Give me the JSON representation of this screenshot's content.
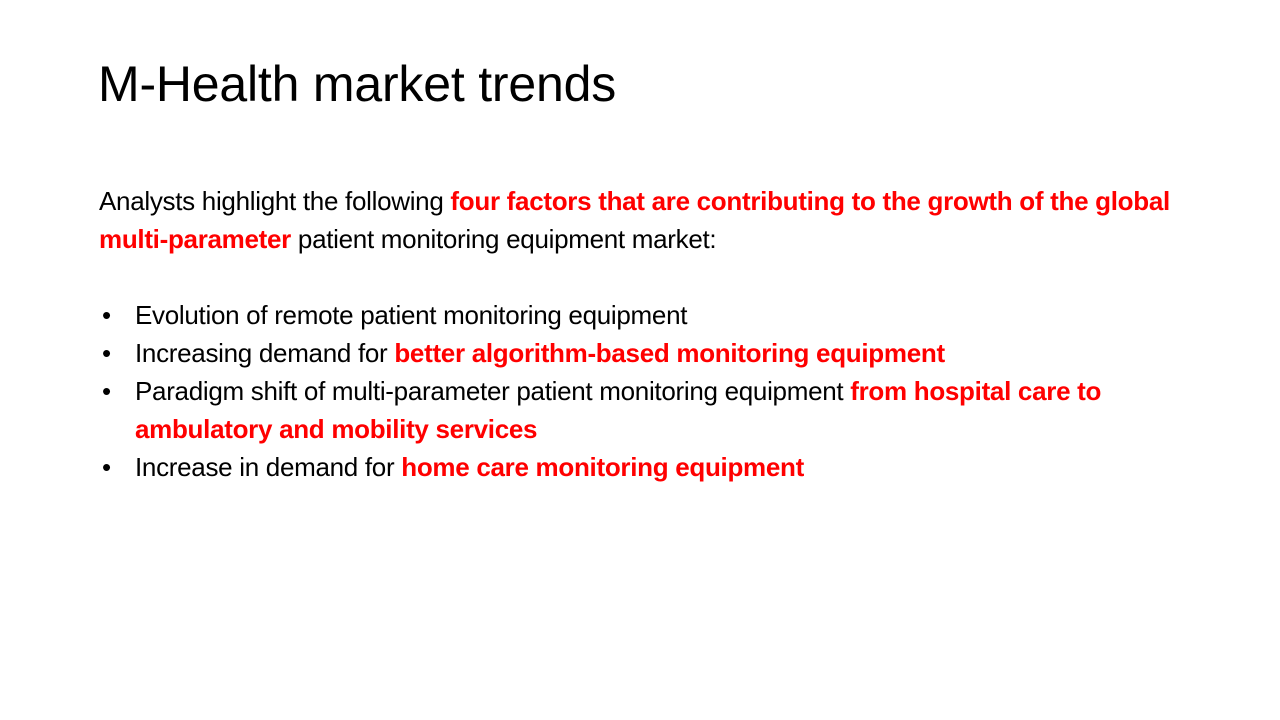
{
  "slide": {
    "title": "M-Health market trends",
    "intro": {
      "part1": "Analysts highlight the following ",
      "highlight": "four factors that are contributing to the growth of the global multi-parameter",
      "part2": " patient monitoring equipment market:"
    },
    "bullet_char": "•",
    "bullets": [
      {
        "text": "Evolution of remote patient monitoring equipment",
        "highlight": ""
      },
      {
        "text": "Increasing demand for ",
        "highlight": "better algorithm-based monitoring equipment"
      },
      {
        "text": "Paradigm shift of multi-parameter patient monitoring equipment ",
        "highlight": "from hospital care to ambulatory and mobility services"
      },
      {
        "text": "Increase in demand for ",
        "highlight": "home care monitoring equipment"
      }
    ],
    "colors": {
      "highlight": "#ff0000",
      "text": "#000000",
      "background": "#ffffff"
    }
  }
}
